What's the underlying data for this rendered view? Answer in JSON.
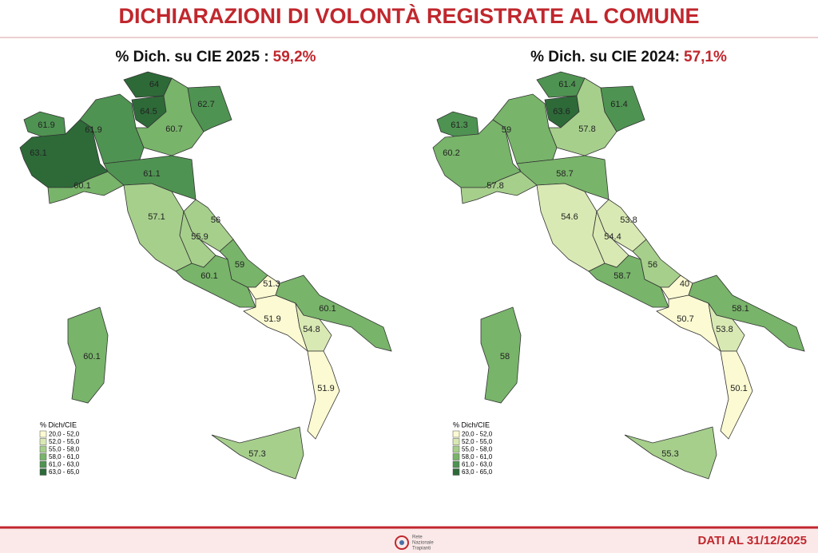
{
  "header": {
    "title": "DICHIARAZIONI DI VOLONTÀ REGISTRATE AL COMUNE"
  },
  "legend": {
    "title": "% Dich/CIE",
    "classes": [
      {
        "label": "20,0 - 52,0",
        "min": 20,
        "max": 52,
        "color": "#fbfad2"
      },
      {
        "label": "52,0 - 55,0",
        "min": 52,
        "max": 55,
        "color": "#d9e9b4"
      },
      {
        "label": "55,0 - 58,0",
        "min": 55,
        "max": 58,
        "color": "#a6cf8c"
      },
      {
        "label": "58,0 - 61,0",
        "min": 58,
        "max": 61,
        "color": "#78b46a"
      },
      {
        "label": "61,0 - 63,0",
        "min": 61,
        "max": 63,
        "color": "#4f9352"
      },
      {
        "label": "63,0 - 65,0",
        "min": 63,
        "max": 65,
        "color": "#2d6a38"
      }
    ]
  },
  "maps": [
    {
      "title": "% Dich. su CIE 2025 :",
      "total": "59,2%",
      "values": [
        61.9,
        63.1,
        61.9,
        64,
        64.5,
        60.7,
        62.7,
        60.1,
        61.1,
        57.1,
        56,
        55.9,
        60.1,
        59,
        51.3,
        51.9,
        60.1,
        54.8,
        51.9,
        57.3,
        60.1
      ]
    },
    {
      "title": "% Dich. su CIE 2024:",
      "total": "57,1%",
      "values": [
        61.3,
        60.2,
        59,
        61.4,
        63.6,
        57.8,
        61.4,
        57.8,
        58.7,
        54.6,
        53.8,
        54.4,
        58.7,
        56,
        40,
        50.7,
        58.1,
        53.8,
        50.1,
        55.3,
        58
      ]
    }
  ],
  "footer": {
    "logo": [
      "Rete",
      "Nazionale",
      "Trapianti"
    ],
    "date": "DATI AL 31/12/2025"
  }
}
